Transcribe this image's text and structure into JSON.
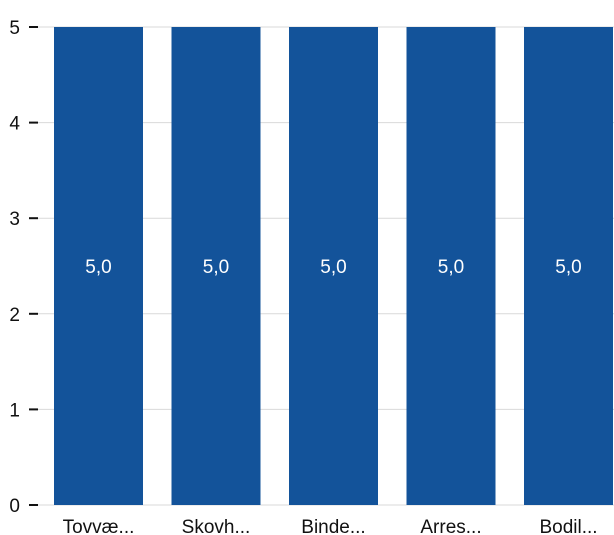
{
  "chart_data": {
    "type": "bar",
    "categories": [
      "Tovvæ...",
      "Skovh...",
      "Binde...",
      "Arres...",
      "Bodil..."
    ],
    "values": [
      5.0,
      5.0,
      5.0,
      5.0,
      5.0
    ],
    "data_labels": [
      "5,0",
      "5,0",
      "5,0",
      "5,0",
      "5,0"
    ],
    "ylim": [
      0,
      5
    ],
    "yticks": [
      0,
      1,
      2,
      3,
      4,
      5
    ],
    "ytick_labels": [
      "0",
      "1",
      "2",
      "3",
      "4",
      "5"
    ],
    "grid": true,
    "legend": "none",
    "bar_color": "#13539a",
    "grid_color": "#d9d9d9"
  }
}
